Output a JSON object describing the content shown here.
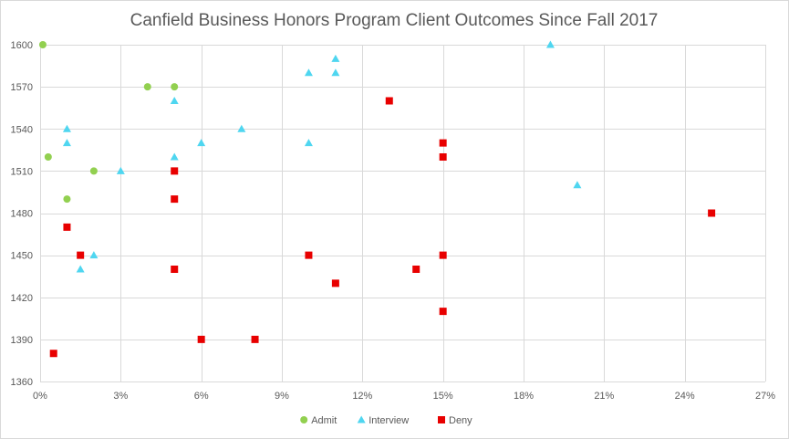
{
  "chart_data": {
    "type": "scatter",
    "title": "Canfield Business Honors Program Client Outcomes Since Fall 2017",
    "xlabel": "",
    "ylabel": "",
    "xlim": [
      0,
      0.27
    ],
    "ylim": [
      1360,
      1600
    ],
    "x_ticks": [
      0,
      0.03,
      0.06,
      0.09,
      0.12,
      0.15,
      0.18,
      0.21,
      0.24,
      0.27
    ],
    "x_tick_labels": [
      "0%",
      "3%",
      "6%",
      "9%",
      "12%",
      "15%",
      "18%",
      "21%",
      "24%",
      "27%"
    ],
    "y_ticks": [
      1360,
      1390,
      1420,
      1450,
      1480,
      1510,
      1540,
      1570,
      1600
    ],
    "y_tick_labels": [
      "1360",
      "1390",
      "1420",
      "1450",
      "1480",
      "1510",
      "1540",
      "1570",
      "1600"
    ],
    "grid": true,
    "legend_position": "bottom",
    "series": [
      {
        "name": "Admit",
        "color": "#92d050",
        "marker": "circle",
        "points": [
          [
            0.001,
            1600
          ],
          [
            0.003,
            1520
          ],
          [
            0.01,
            1490
          ],
          [
            0.02,
            1510
          ],
          [
            0.04,
            1570
          ],
          [
            0.05,
            1570
          ]
        ]
      },
      {
        "name": "Interview",
        "color": "#4fd6f0",
        "marker": "triangle",
        "points": [
          [
            0.01,
            1540
          ],
          [
            0.01,
            1530
          ],
          [
            0.015,
            1440
          ],
          [
            0.02,
            1450
          ],
          [
            0.03,
            1510
          ],
          [
            0.05,
            1560
          ],
          [
            0.05,
            1520
          ],
          [
            0.06,
            1530
          ],
          [
            0.075,
            1540
          ],
          [
            0.1,
            1580
          ],
          [
            0.1,
            1530
          ],
          [
            0.11,
            1590
          ],
          [
            0.11,
            1580
          ],
          [
            0.19,
            1600
          ],
          [
            0.2,
            1500
          ]
        ]
      },
      {
        "name": "Deny",
        "color": "#e80000",
        "marker": "square",
        "points": [
          [
            0.005,
            1380
          ],
          [
            0.01,
            1470
          ],
          [
            0.015,
            1450
          ],
          [
            0.05,
            1510
          ],
          [
            0.05,
            1490
          ],
          [
            0.05,
            1440
          ],
          [
            0.06,
            1390
          ],
          [
            0.08,
            1390
          ],
          [
            0.1,
            1450
          ],
          [
            0.11,
            1430
          ],
          [
            0.13,
            1560
          ],
          [
            0.14,
            1440
          ],
          [
            0.15,
            1530
          ],
          [
            0.15,
            1520
          ],
          [
            0.15,
            1450
          ],
          [
            0.15,
            1410
          ],
          [
            0.25,
            1480
          ]
        ]
      }
    ]
  }
}
